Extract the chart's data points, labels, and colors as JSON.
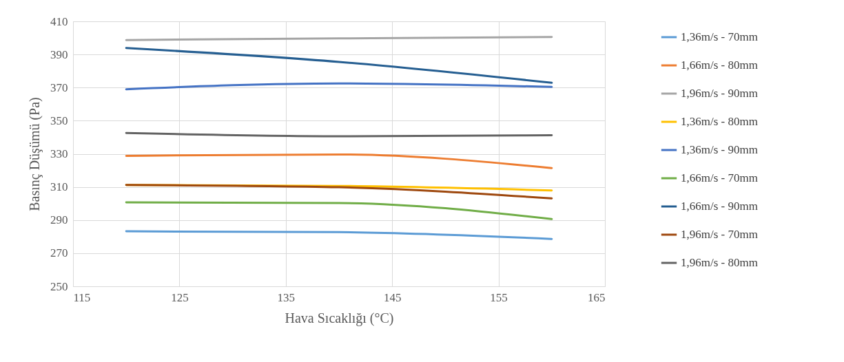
{
  "chart_data": {
    "type": "line",
    "xlabel": "Hava Sıcaklığı (°C)",
    "ylabel": "Basınç Düşümü (Pa)",
    "x": [
      120,
      140,
      160
    ],
    "xlim": [
      115,
      165
    ],
    "xticks": [
      115,
      125,
      135,
      145,
      155,
      165
    ],
    "ylim": [
      250,
      410
    ],
    "yticks": [
      250,
      270,
      290,
      310,
      330,
      350,
      370,
      390,
      410
    ],
    "grid": true,
    "legend": "right",
    "marker": "none",
    "line_style": "solid",
    "series": [
      {
        "name": "1,36m/s - 70mm",
        "color": "#5b9bd5",
        "values": [
          283.2,
          282.7,
          278.6
        ]
      },
      {
        "name": "1,66m/s - 80mm",
        "color": "#ed7d31",
        "values": [
          328.8,
          329.6,
          321.4
        ]
      },
      {
        "name": "1,96m/s - 90mm",
        "color": "#a5a5a5",
        "values": [
          398.7,
          399.7,
          400.5
        ]
      },
      {
        "name": "1,36m/s - 80mm",
        "color": "#ffc000",
        "values": [
          311.2,
          310.6,
          307.9
        ]
      },
      {
        "name": "1,36m/s - 90mm",
        "color": "#4472c4",
        "values": [
          369.0,
          372.5,
          370.4
        ]
      },
      {
        "name": "1,66m/s - 70mm",
        "color": "#70ad47",
        "values": [
          300.7,
          300.3,
          290.6
        ]
      },
      {
        "name": "1,66m/s - 90mm",
        "color": "#255e91",
        "values": [
          393.9,
          385.5,
          372.9
        ]
      },
      {
        "name": "1,96m/s - 70mm",
        "color": "#9e480e",
        "values": [
          311.2,
          309.8,
          303.1
        ]
      },
      {
        "name": "1,96m/s - 80mm",
        "color": "#636363",
        "values": [
          342.6,
          340.6,
          341.2
        ]
      }
    ]
  }
}
